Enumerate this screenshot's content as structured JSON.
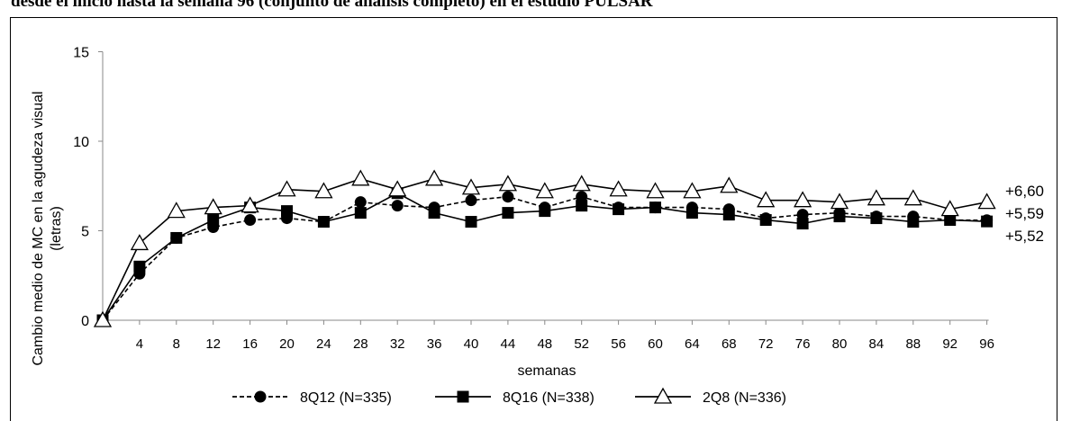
{
  "header": {
    "title": "desde el inicio hasta la semana 96 (conjunto de análisis completo) en el estudio PULSAR"
  },
  "chart_data": {
    "type": "line",
    "title": "",
    "xlabel": "semanas",
    "ylabel": "Cambio medio de MC en la agudeza visual (letras)",
    "ylabel_lines": [
      "Cambio medio de MC en la agudeza visual",
      "(letras)"
    ],
    "ylim": [
      0,
      15
    ],
    "yticks": [
      0,
      5,
      10,
      15
    ],
    "x": [
      0,
      4,
      8,
      12,
      16,
      20,
      24,
      28,
      32,
      36,
      40,
      44,
      48,
      52,
      56,
      60,
      64,
      68,
      72,
      76,
      80,
      84,
      88,
      92,
      96
    ],
    "xtick_labels": [
      "4",
      "8",
      "12",
      "16",
      "20",
      "24",
      "28",
      "32",
      "36",
      "40",
      "44",
      "48",
      "52",
      "56",
      "60",
      "64",
      "68",
      "72",
      "76",
      "80",
      "84",
      "88",
      "92",
      "96"
    ],
    "grid": false,
    "legend_position": "bottom",
    "series": [
      {
        "name": "8Q12 (N=335)",
        "marker": "circle",
        "line": "dashed",
        "values": [
          0,
          2.6,
          4.6,
          5.2,
          5.6,
          5.7,
          5.5,
          6.6,
          6.4,
          6.3,
          6.7,
          6.9,
          6.3,
          6.9,
          6.3,
          6.3,
          6.3,
          6.2,
          5.7,
          5.9,
          6.0,
          5.8,
          5.8,
          5.6,
          5.59
        ],
        "end_label": "+5,59"
      },
      {
        "name": "8Q16 (N=338)",
        "marker": "square",
        "line": "solid",
        "values": [
          0,
          3.0,
          4.6,
          5.6,
          6.3,
          6.1,
          5.5,
          6.0,
          7.1,
          6.0,
          5.5,
          6.0,
          6.1,
          6.4,
          6.2,
          6.3,
          6.0,
          5.9,
          5.6,
          5.4,
          5.8,
          5.7,
          5.5,
          5.6,
          5.52
        ],
        "end_label": "+5,52"
      },
      {
        "name": "2Q8 (N=336)",
        "marker": "triangle",
        "line": "solid",
        "values": [
          0,
          4.3,
          6.1,
          6.3,
          6.4,
          7.3,
          7.2,
          7.9,
          7.3,
          7.9,
          7.4,
          7.6,
          7.2,
          7.6,
          7.3,
          7.2,
          7.2,
          7.5,
          6.7,
          6.7,
          6.6,
          6.8,
          6.8,
          6.2,
          6.6
        ],
        "end_label": "+6,60"
      }
    ]
  }
}
